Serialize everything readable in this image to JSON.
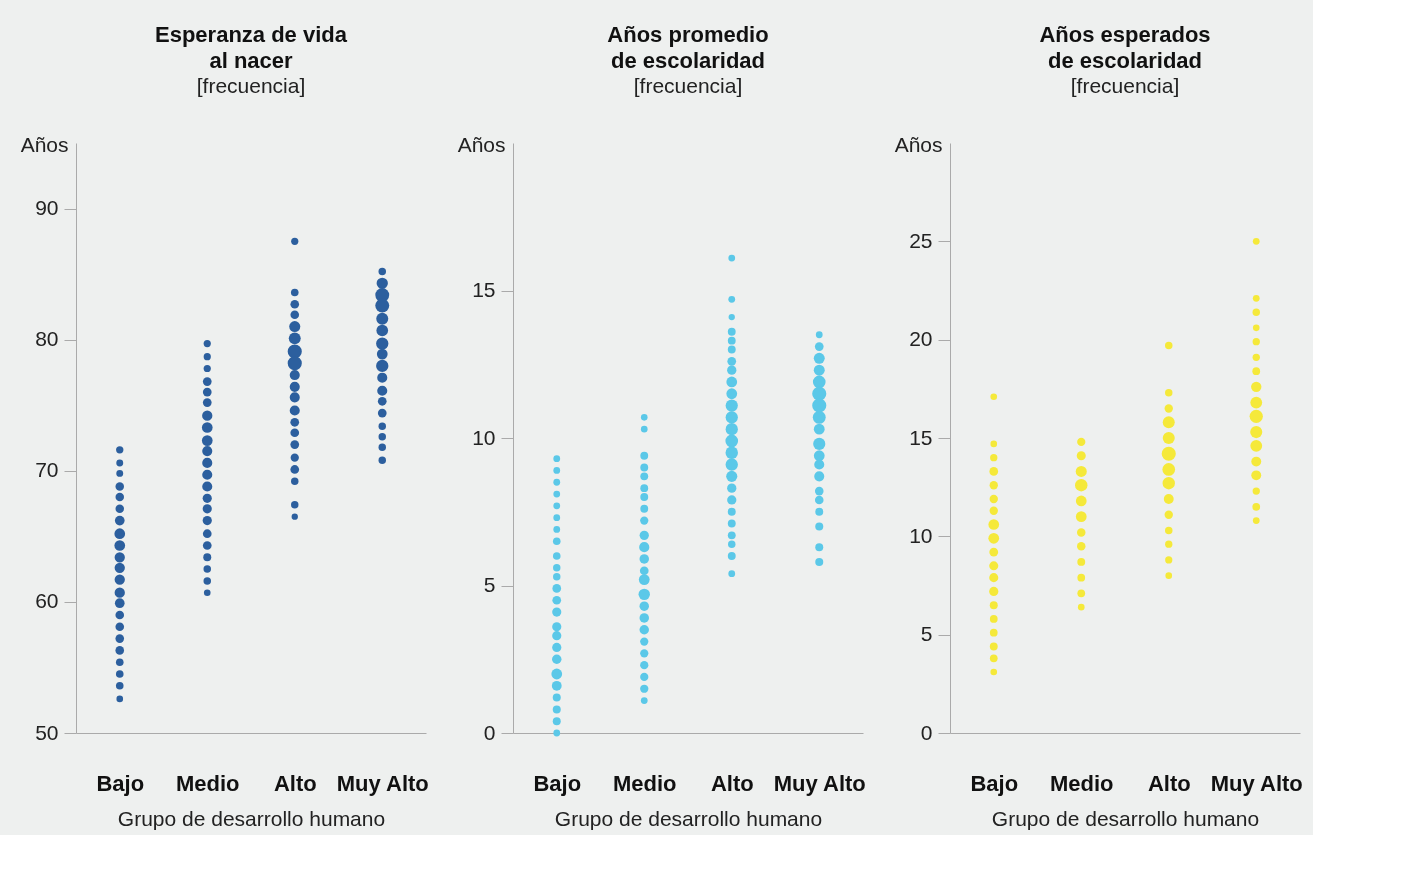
{
  "chart_data": [
    {
      "type": "bubble",
      "title": "Esperanza de vida\nal nacer",
      "subtitle": "[frecuencia]",
      "ylabel": "Años",
      "xlabel": "Grupo de desarrollo humano",
      "categories": [
        "Bajo",
        "Medio",
        "Alto",
        "Muy Alto"
      ],
      "ylim": [
        50,
        95
      ],
      "yticks": [
        50,
        60,
        70,
        80,
        90
      ],
      "grid": false,
      "series": [
        {
          "color": "#2c5f9e",
          "x": [
            "Bajo",
            "Bajo",
            "Bajo",
            "Bajo",
            "Bajo",
            "Bajo",
            "Bajo",
            "Bajo",
            "Bajo",
            "Bajo",
            "Bajo",
            "Bajo",
            "Bajo",
            "Bajo",
            "Bajo",
            "Bajo",
            "Bajo",
            "Bajo",
            "Bajo",
            "Bajo",
            "Bajo",
            "Bajo"
          ],
          "values": [
            71.6,
            70.6,
            69.8,
            68.8,
            68.0,
            67.1,
            66.2,
            65.2,
            64.3,
            63.4,
            62.6,
            61.7,
            60.7,
            59.9,
            59.0,
            58.1,
            57.2,
            56.3,
            55.4,
            54.5,
            53.6,
            52.6
          ],
          "sizes": [
            0.27,
            0.24,
            0.24,
            0.36,
            0.36,
            0.36,
            0.47,
            0.57,
            0.57,
            0.53,
            0.53,
            0.53,
            0.53,
            0.47,
            0.37,
            0.37,
            0.37,
            0.37,
            0.29,
            0.29,
            0.29,
            0.22
          ]
        },
        {
          "color": "#2c5f9e",
          "x": [
            "Medio",
            "Medio",
            "Medio",
            "Medio",
            "Medio",
            "Medio",
            "Medio",
            "Medio",
            "Medio",
            "Medio",
            "Medio",
            "Medio",
            "Medio",
            "Medio",
            "Medio",
            "Medio",
            "Medio",
            "Medio",
            "Medio",
            "Medio",
            "Medio",
            "Medio"
          ],
          "values": [
            79.7,
            78.7,
            77.8,
            76.8,
            76.0,
            75.2,
            74.2,
            73.3,
            72.3,
            71.5,
            70.6,
            69.7,
            68.8,
            67.9,
            67.1,
            66.2,
            65.2,
            64.3,
            63.4,
            62.5,
            61.6,
            60.7
          ],
          "sizes": [
            0.26,
            0.26,
            0.26,
            0.38,
            0.38,
            0.38,
            0.53,
            0.57,
            0.57,
            0.51,
            0.51,
            0.51,
            0.51,
            0.42,
            0.42,
            0.42,
            0.38,
            0.38,
            0.32,
            0.28,
            0.28,
            0.22
          ]
        },
        {
          "color": "#2c5f9e",
          "x": [
            "Alto",
            "Alto",
            "Alto",
            "Alto",
            "Alto",
            "Alto",
            "Alto",
            "Alto",
            "Alto",
            "Alto",
            "Alto",
            "Alto",
            "Alto",
            "Alto",
            "Alto",
            "Alto",
            "Alto",
            "Alto",
            "Alto",
            "Alto"
          ],
          "values": [
            87.5,
            83.6,
            82.7,
            81.9,
            81.0,
            80.1,
            79.1,
            78.2,
            77.3,
            76.4,
            75.6,
            74.6,
            73.7,
            72.9,
            72.0,
            71.0,
            70.1,
            69.2,
            67.4,
            66.5
          ],
          "sizes": [
            0.26,
            0.29,
            0.37,
            0.37,
            0.61,
            0.71,
            1,
            1,
            0.51,
            0.51,
            0.51,
            0.51,
            0.38,
            0.38,
            0.38,
            0.34,
            0.38,
            0.28,
            0.28,
            0.2
          ]
        },
        {
          "color": "#2c5f9e",
          "x": [
            "Muy Alto",
            "Muy Alto",
            "Muy Alto",
            "Muy Alto",
            "Muy Alto",
            "Muy Alto",
            "Muy Alto",
            "Muy Alto",
            "Muy Alto",
            "Muy Alto",
            "Muy Alto",
            "Muy Alto",
            "Muy Alto",
            "Muy Alto",
            "Muy Alto",
            "Muy Alto",
            "Muy Alto"
          ],
          "values": [
            85.2,
            84.3,
            83.4,
            82.6,
            81.6,
            80.7,
            79.7,
            78.9,
            78.0,
            77.1,
            76.1,
            75.3,
            74.4,
            73.4,
            72.6,
            71.8,
            70.8
          ],
          "sizes": [
            0.28,
            0.64,
            0.97,
            0.97,
            0.72,
            0.68,
            0.76,
            0.58,
            0.76,
            0.51,
            0.51,
            0.38,
            0.38,
            0.28,
            0.28,
            0.28,
            0.28
          ]
        }
      ]
    },
    {
      "type": "bubble",
      "title": "Años promedio\nde escolaridad",
      "subtitle": "[frecuencia]",
      "ylabel": "Años",
      "xlabel": "Grupo de desarrollo humano",
      "categories": [
        "Bajo",
        "Medio",
        "Alto",
        "Muy Alto"
      ],
      "ylim": [
        0,
        20
      ],
      "yticks": [
        0,
        5,
        10,
        15
      ],
      "grid": false,
      "series": [
        {
          "color": "#5bc8e8",
          "x": [
            "Bajo",
            "Bajo",
            "Bajo",
            "Bajo",
            "Bajo",
            "Bajo",
            "Bajo",
            "Bajo",
            "Bajo",
            "Bajo",
            "Bajo",
            "Bajo",
            "Bajo",
            "Bajo",
            "Bajo",
            "Bajo",
            "Bajo",
            "Bajo",
            "Bajo",
            "Bajo",
            "Bajo",
            "Bajo",
            "Bajo",
            "Bajo"
          ],
          "values": [
            9.3,
            8.9,
            8.5,
            8.1,
            7.7,
            7.3,
            6.9,
            6.5,
            6.0,
            5.6,
            5.3,
            4.9,
            4.5,
            4.1,
            3.6,
            3.3,
            2.9,
            2.5,
            2.0,
            1.6,
            1.2,
            0.8,
            0.4,
            0.0
          ],
          "sizes": [
            0.23,
            0.23,
            0.23,
            0.23,
            0.23,
            0.23,
            0.23,
            0.29,
            0.29,
            0.28,
            0.28,
            0.38,
            0.38,
            0.42,
            0.42,
            0.42,
            0.42,
            0.45,
            0.58,
            0.48,
            0.32,
            0.32,
            0.32,
            0.23
          ]
        },
        {
          "color": "#5bc8e8",
          "x": [
            "Medio",
            "Medio",
            "Medio",
            "Medio",
            "Medio",
            "Medio",
            "Medio",
            "Medio",
            "Medio",
            "Medio",
            "Medio",
            "Medio",
            "Medio",
            "Medio",
            "Medio",
            "Medio",
            "Medio",
            "Medio",
            "Medio",
            "Medio",
            "Medio",
            "Medio",
            "Medio",
            "Medio"
          ],
          "values": [
            10.7,
            10.3,
            9.4,
            9.0,
            8.7,
            8.3,
            8.0,
            7.6,
            7.2,
            6.7,
            6.3,
            5.9,
            5.5,
            5.2,
            4.7,
            4.3,
            3.9,
            3.5,
            3.1,
            2.7,
            2.3,
            1.9,
            1.5,
            1.1
          ],
          "sizes": [
            0.22,
            0.22,
            0.31,
            0.31,
            0.31,
            0.31,
            0.31,
            0.31,
            0.34,
            0.43,
            0.52,
            0.45,
            0.38,
            0.58,
            0.65,
            0.45,
            0.45,
            0.45,
            0.34,
            0.34,
            0.34,
            0.34,
            0.34,
            0.23
          ]
        },
        {
          "color": "#5bc8e8",
          "x": [
            "Alto",
            "Alto",
            "Alto",
            "Alto",
            "Alto",
            "Alto",
            "Alto",
            "Alto",
            "Alto",
            "Alto",
            "Alto",
            "Alto",
            "Alto",
            "Alto",
            "Alto",
            "Alto",
            "Alto",
            "Alto",
            "Alto",
            "Alto",
            "Alto",
            "Alto",
            "Alto",
            "Alto",
            "Alto"
          ],
          "values": [
            16.1,
            14.7,
            14.1,
            13.6,
            13.3,
            13.0,
            12.6,
            12.3,
            11.9,
            11.5,
            11.1,
            10.7,
            10.3,
            9.9,
            9.5,
            9.1,
            8.7,
            8.3,
            7.9,
            7.5,
            7.1,
            6.7,
            6.4,
            6.0,
            5.4
          ],
          "sizes": [
            0.23,
            0.23,
            0.2,
            0.31,
            0.31,
            0.31,
            0.38,
            0.43,
            0.58,
            0.58,
            0.75,
            0.75,
            0.75,
            0.8,
            0.78,
            0.77,
            0.62,
            0.43,
            0.43,
            0.32,
            0.31,
            0.31,
            0.28,
            0.31,
            0.23
          ]
        },
        {
          "color": "#5bc8e8",
          "x": [
            "Muy Alto",
            "Muy Alto",
            "Muy Alto",
            "Muy Alto",
            "Muy Alto",
            "Muy Alto",
            "Muy Alto",
            "Muy Alto",
            "Muy Alto",
            "Muy Alto",
            "Muy Alto",
            "Muy Alto",
            "Muy Alto",
            "Muy Alto",
            "Muy Alto",
            "Muy Alto",
            "Muy Alto",
            "Muy Alto",
            "Muy Alto"
          ],
          "values": [
            13.5,
            13.1,
            12.7,
            12.3,
            11.9,
            11.5,
            11.1,
            10.7,
            10.3,
            9.8,
            9.4,
            9.1,
            8.7,
            8.2,
            7.9,
            7.5,
            7.0,
            6.3,
            5.8
          ],
          "sizes": [
            0.23,
            0.38,
            0.6,
            0.6,
            0.8,
            1,
            1,
            0.83,
            0.58,
            0.74,
            0.58,
            0.51,
            0.51,
            0.37,
            0.37,
            0.32,
            0.32,
            0.32,
            0.32
          ]
        }
      ]
    },
    {
      "type": "bubble",
      "title": "Años esperados\nde escolaridad",
      "subtitle": "[frecuencia]",
      "ylabel": "Años",
      "xlabel": "Grupo de desarrollo humano",
      "categories": [
        "Bajo",
        "Medio",
        "Alto",
        "Muy Alto"
      ],
      "ylim": [
        0,
        30
      ],
      "yticks": [
        0,
        5,
        10,
        15,
        20,
        25
      ],
      "grid": false,
      "series": [
        {
          "color": "#f5e93a",
          "x": [
            "Bajo",
            "Bajo",
            "Bajo",
            "Bajo",
            "Bajo",
            "Bajo",
            "Bajo",
            "Bajo",
            "Bajo",
            "Bajo",
            "Bajo",
            "Bajo",
            "Bajo",
            "Bajo",
            "Bajo",
            "Bajo",
            "Bajo",
            "Bajo",
            "Bajo"
          ],
          "values": [
            17.1,
            14.7,
            14.0,
            13.3,
            12.6,
            11.9,
            11.3,
            10.6,
            9.9,
            9.2,
            8.5,
            7.9,
            7.2,
            6.5,
            5.8,
            5.1,
            4.4,
            3.8,
            3.1
          ],
          "sizes": [
            0.22,
            0.22,
            0.27,
            0.38,
            0.35,
            0.35,
            0.35,
            0.57,
            0.58,
            0.39,
            0.41,
            0.41,
            0.42,
            0.32,
            0.3,
            0.3,
            0.31,
            0.3,
            0.22
          ]
        },
        {
          "color": "#f5e93a",
          "x": [
            "Medio",
            "Medio",
            "Medio",
            "Medio",
            "Medio",
            "Medio",
            "Medio",
            "Medio",
            "Medio",
            "Medio",
            "Medio",
            "Medio"
          ],
          "values": [
            14.8,
            14.1,
            13.3,
            12.6,
            11.8,
            11.0,
            10.2,
            9.5,
            8.7,
            7.9,
            7.1,
            6.4
          ],
          "sizes": [
            0.34,
            0.41,
            0.61,
            0.78,
            0.58,
            0.58,
            0.36,
            0.36,
            0.31,
            0.3,
            0.3,
            0.22
          ]
        },
        {
          "color": "#f5e93a",
          "x": [
            "Alto",
            "Alto",
            "Alto",
            "Alto",
            "Alto",
            "Alto",
            "Alto",
            "Alto",
            "Alto",
            "Alto",
            "Alto",
            "Alto",
            "Alto",
            "Alto"
          ],
          "values": [
            19.7,
            17.3,
            16.5,
            15.8,
            15.0,
            14.2,
            13.4,
            12.7,
            11.9,
            11.1,
            10.3,
            9.6,
            8.8,
            8.0
          ],
          "sizes": [
            0.28,
            0.28,
            0.35,
            0.72,
            0.72,
            1,
            0.81,
            0.77,
            0.49,
            0.35,
            0.28,
            0.27,
            0.26,
            0.22
          ]
        },
        {
          "color": "#f5e93a",
          "x": [
            "Muy Alto",
            "Muy Alto",
            "Muy Alto",
            "Muy Alto",
            "Muy Alto",
            "Muy Alto",
            "Muy Alto",
            "Muy Alto",
            "Muy Alto",
            "Muy Alto",
            "Muy Alto",
            "Muy Alto",
            "Muy Alto",
            "Muy Alto",
            "Muy Alto",
            "Muy Alto",
            "Muy Alto"
          ],
          "values": [
            25.0,
            22.1,
            21.4,
            20.6,
            19.9,
            19.1,
            18.4,
            17.6,
            16.8,
            16.1,
            15.3,
            14.6,
            13.8,
            13.1,
            12.3,
            11.5,
            10.8
          ],
          "sizes": [
            0.23,
            0.23,
            0.28,
            0.22,
            0.27,
            0.27,
            0.3,
            0.54,
            0.7,
            0.88,
            0.73,
            0.7,
            0.49,
            0.49,
            0.27,
            0.3,
            0.23
          ]
        }
      ]
    }
  ]
}
